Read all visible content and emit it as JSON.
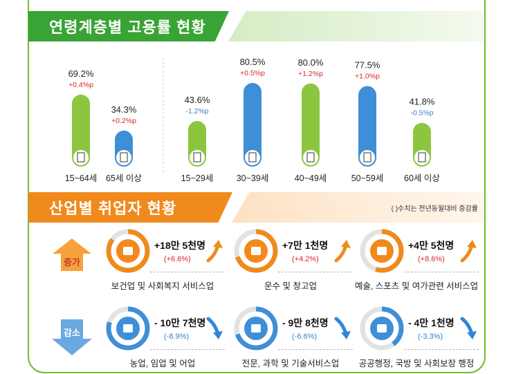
{
  "age_section": {
    "title": "연령계층별 고용률 현황"
  },
  "industry_section": {
    "title": "산업별 취업자 현황",
    "note": "( )수치는 전년동월대비 증감률",
    "increase_label": "증가",
    "decrease_label": "감소",
    "increase": [
      {
        "name": "보건업 및 사회복지 서비스업",
        "change": "+18만 5천명",
        "rate": "(+6.6%)",
        "icon": "first-aid-kit-icon",
        "fill": 0.85
      },
      {
        "name": "운수 및 창고업",
        "change": "+7만 1천명",
        "rate": "(+4.2%)",
        "icon": "delivery-truck-icon",
        "fill": 0.7
      },
      {
        "name": "예술, 스포츠 및 여가관련 서비스업",
        "change": "+4만 5천명",
        "rate": "(+8.6%)",
        "icon": "art-palette-icon",
        "fill": 0.55
      }
    ],
    "decrease": [
      {
        "name": "농업, 임업 및 어업",
        "change": "- 10만 7천명",
        "rate": "(-8.9%)",
        "icon": "wheat-icon",
        "fill": 0.8
      },
      {
        "name": "전문, 과학 및 기술서비스업",
        "change": "- 9만 8천명",
        "rate": "(-6.6%)",
        "icon": "flask-icon",
        "fill": 0.7
      },
      {
        "name": "공공행정, 국방 및 사회보장 행정",
        "change": "- 4만 1천명",
        "rate": "(-3.3%)",
        "icon": "document-scroll-icon",
        "fill": 0.4
      }
    ]
  },
  "colors": {
    "green": "#8cc63f",
    "blue": "#3e8fd8",
    "orange": "#f08a1d",
    "red": "#d6262d",
    "rate_blue": "#3a7fc8"
  },
  "chart_data": {
    "type": "bar",
    "title": "연령계층별 고용률 현황",
    "unit": "%",
    "ylim": [
      0,
      100
    ],
    "categories": [
      "15~64세",
      "65세 이상",
      "15~29세",
      "30~39세",
      "40~49세",
      "50~59세",
      "60세 이상"
    ],
    "values": [
      69.2,
      34.3,
      43.6,
      80.5,
      80.0,
      77.5,
      41.8
    ],
    "value_labels": [
      "69.2%",
      "34.3%",
      "43.6%",
      "80.5%",
      "80.0%",
      "77.5%",
      "41.8%"
    ],
    "changes": [
      0.4,
      0.2,
      -1.2,
      0.5,
      1.2,
      1.0,
      -0.5
    ],
    "change_labels": [
      "+0.4%p",
      "+0.2%p",
      "-1.2%p",
      "+0.5%p",
      "+1.2%p",
      "+1.0%p",
      "-0.5%p"
    ],
    "bar_colors": [
      "green",
      "blue",
      "green",
      "blue",
      "green",
      "blue",
      "green"
    ]
  }
}
